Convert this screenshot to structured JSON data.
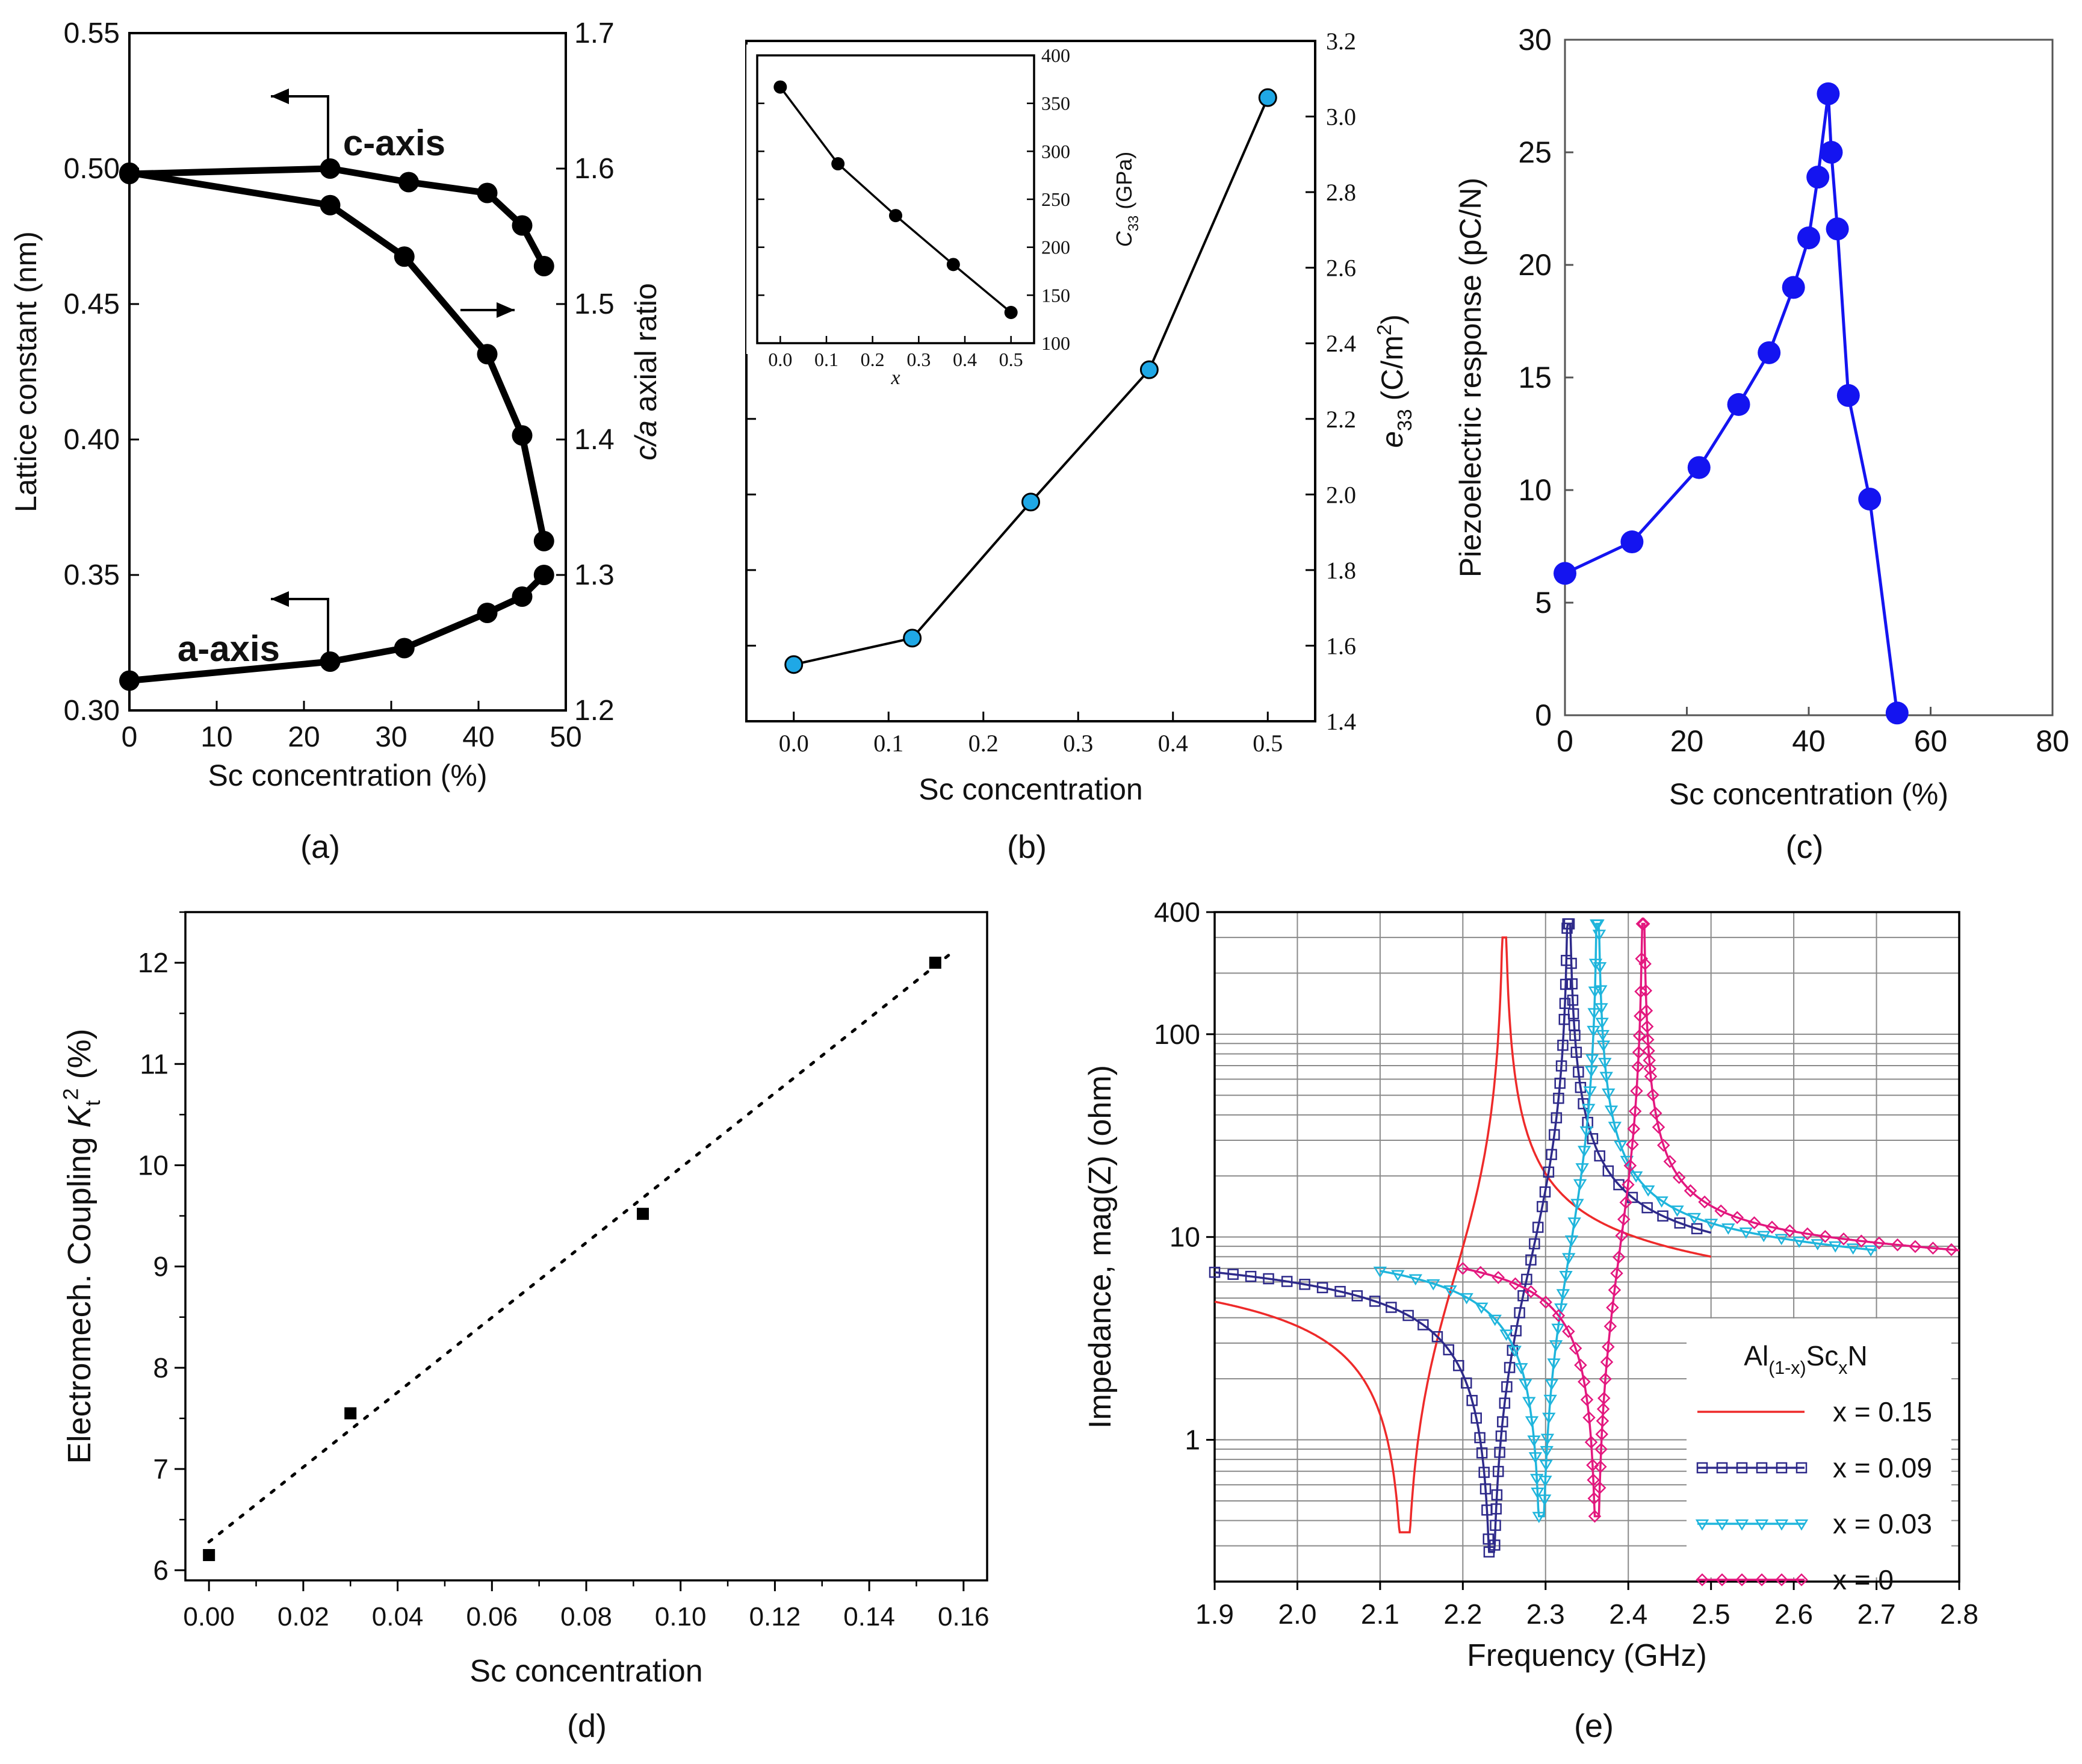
{
  "chart_data": [
    {
      "panel": "(a)",
      "type": "line",
      "xlabel": "Sc concentration (%)",
      "ylabel": "Lattice constant (nm)",
      "ylabel_right_parts": [
        "c/a",
        " axial ratio"
      ],
      "xlim": [
        0,
        50
      ],
      "ylim": [
        0.3,
        0.55
      ],
      "ylim_right": [
        1.2,
        1.7
      ],
      "xticks": [
        "0",
        "10",
        "20",
        "30",
        "40",
        "50"
      ],
      "yticks": [
        "0.30",
        "0.35",
        "0.40",
        "0.45",
        "0.50",
        "0.55"
      ],
      "yticks_right": [
        "1.2",
        "1.3",
        "1.4",
        "1.5",
        "1.6",
        "1.7"
      ],
      "annotations": [
        "c-axis",
        "a-axis"
      ],
      "series": [
        {
          "name": "c-axis",
          "axis": "left",
          "points": [
            [
              0,
              0.498
            ],
            [
              23,
              0.5
            ],
            [
              32,
              0.495
            ],
            [
              41,
              0.491
            ],
            [
              45,
              0.479
            ],
            [
              47.5,
              0.464
            ]
          ]
        },
        {
          "name": "a-axis",
          "axis": "left",
          "points": [
            [
              0,
              0.311
            ],
            [
              23,
              0.318
            ],
            [
              31.5,
              0.323
            ],
            [
              41,
              0.336
            ],
            [
              45,
              0.342
            ],
            [
              47.5,
              0.35
            ]
          ]
        },
        {
          "name": "c/a axial ratio",
          "axis": "right",
          "points": [
            [
              0,
              1.597
            ],
            [
              23,
              1.573
            ],
            [
              31.5,
              1.535
            ],
            [
              41,
              1.463
            ],
            [
              45,
              1.403
            ],
            [
              47.5,
              1.325
            ]
          ]
        }
      ]
    },
    {
      "panel": "(b)",
      "type": "line",
      "xlabel": "Sc concentration",
      "ylabel_right_parts": [
        "e",
        "33",
        " (C/m",
        "2",
        ")"
      ],
      "xlim": [
        -0.05,
        0.55
      ],
      "ylim_right": [
        1.4,
        3.2
      ],
      "xticks": [
        "0.0",
        "0.1",
        "0.2",
        "0.3",
        "0.4",
        "0.5"
      ],
      "yticks_right": [
        "1.4",
        "1.6",
        "1.8",
        "2.0",
        "2.2",
        "2.4",
        "2.6",
        "2.8",
        "3.0",
        "3.2"
      ],
      "series": [
        {
          "name": "e33",
          "points": [
            [
              0.0,
              1.55
            ],
            [
              0.125,
              1.62
            ],
            [
              0.25,
              1.98
            ],
            [
              0.375,
              2.33
            ],
            [
              0.5,
              3.05
            ]
          ]
        }
      ],
      "inset": {
        "xlabel": "x",
        "ylabel_parts": [
          "C",
          "33",
          " (GPa)"
        ],
        "xlim": [
          -0.05,
          0.55
        ],
        "ylim": [
          100,
          400
        ],
        "xticks": [
          "0.0",
          "0.1",
          "0.2",
          "0.3",
          "0.4",
          "0.5"
        ],
        "yticks": [
          "100",
          "150",
          "200",
          "250",
          "300",
          "350",
          "400"
        ],
        "series": [
          {
            "name": "C33",
            "points": [
              [
                0.0,
                367
              ],
              [
                0.125,
                287
              ],
              [
                0.25,
                233
              ],
              [
                0.375,
                182
              ],
              [
                0.5,
                132
              ]
            ]
          }
        ]
      }
    },
    {
      "panel": "(c)",
      "type": "line",
      "xlabel": "Sc concentration (%)",
      "ylabel": "Piezoelectric response (pC/N)",
      "xlim": [
        0,
        80
      ],
      "ylim": [
        0,
        30
      ],
      "xticks": [
        "0",
        "20",
        "40",
        "60",
        "80"
      ],
      "yticks": [
        "0",
        "5",
        "10",
        "15",
        "20",
        "25",
        "30"
      ],
      "series": [
        {
          "name": "d33",
          "points": [
            [
              0,
              6.3
            ],
            [
              11,
              7.7
            ],
            [
              22,
              11.0
            ],
            [
              28.5,
              13.8
            ],
            [
              33.5,
              16.1
            ],
            [
              37.5,
              19.0
            ],
            [
              40,
              21.2
            ],
            [
              41.5,
              23.9
            ],
            [
              43.2,
              27.6
            ],
            [
              43.7,
              25.0
            ],
            [
              44.7,
              21.6
            ],
            [
              46.5,
              14.2
            ],
            [
              50,
              9.6
            ],
            [
              54.5,
              0.1
            ]
          ]
        }
      ]
    },
    {
      "panel": "(d)",
      "type": "scatter",
      "xlabel": "Sc concentration",
      "ylabel_parts": [
        "Electromech. Coupling ",
        "K",
        "t",
        "2",
        " (%)"
      ],
      "xlim": [
        -0.005,
        0.165
      ],
      "ylim": [
        5.9,
        12.5
      ],
      "xticks": [
        "0.00",
        "0.02",
        "0.04",
        "0.06",
        "0.08",
        "0.10",
        "0.12",
        "0.14",
        "0.16"
      ],
      "yticks": [
        "6",
        "7",
        "8",
        "9",
        "10",
        "11",
        "12"
      ],
      "points": [
        [
          0.0,
          6.15
        ],
        [
          0.03,
          7.55
        ],
        [
          0.092,
          9.52
        ],
        [
          0.154,
          12.0
        ]
      ],
      "fit_line": [
        [
          0.0,
          6.28
        ],
        [
          0.157,
          12.08
        ]
      ]
    },
    {
      "panel": "(e)",
      "type": "line",
      "xlabel": "Frequency (GHz)",
      "ylabel": "Impedance, mag(Z) (ohm)",
      "yscale": "log",
      "xlim": [
        1.9,
        2.8
      ],
      "ylim": [
        0.2,
        400
      ],
      "xticks": [
        "1.9",
        "2.0",
        "2.1",
        "2.2",
        "2.3",
        "2.4",
        "2.5",
        "2.6",
        "2.7",
        "2.8"
      ],
      "yticks": [
        "1",
        "10",
        "100",
        "400"
      ],
      "legend_title_parts": [
        "Al",
        "(1-x)",
        "Sc",
        "x",
        "N"
      ],
      "legend_position": "bottom-right",
      "series": [
        {
          "name": "x = 0.15",
          "color": "#ee2a2a",
          "marker": "none",
          "f_start": 1.9,
          "f_end": 2.5,
          "fr": 2.13,
          "fa": 2.25,
          "z_low": 0.35,
          "z_peak": 300,
          "z_start": 4.8,
          "z_end": 8.0
        },
        {
          "name": "x = 0.09",
          "color": "#2e2a8a",
          "marker": "square",
          "f_start": 1.9,
          "f_end": 2.5,
          "fr": 2.235,
          "fa": 2.328,
          "z_low": 0.28,
          "z_peak": 350,
          "z_start": 6.7,
          "z_end": 10.5
        },
        {
          "name": "x = 0.03",
          "color": "#1fb5dc",
          "marker": "triangle",
          "f_start": 2.1,
          "f_end": 2.7,
          "fr": 2.295,
          "fa": 2.363,
          "z_low": 0.42,
          "z_peak": 350,
          "z_start": 6.8,
          "z_end": 8.6
        },
        {
          "name": "x = 0",
          "color": "#e3177e",
          "marker": "diamond",
          "f_start": 2.2,
          "f_end": 2.8,
          "fr": 2.362,
          "fa": 2.418,
          "z_low": 0.42,
          "z_peak": 350,
          "z_start": 7.0,
          "z_end": 8.6
        }
      ]
    }
  ],
  "panel_labels": [
    "(a)",
    "(b)",
    "(c)",
    "(d)",
    "(e)"
  ]
}
